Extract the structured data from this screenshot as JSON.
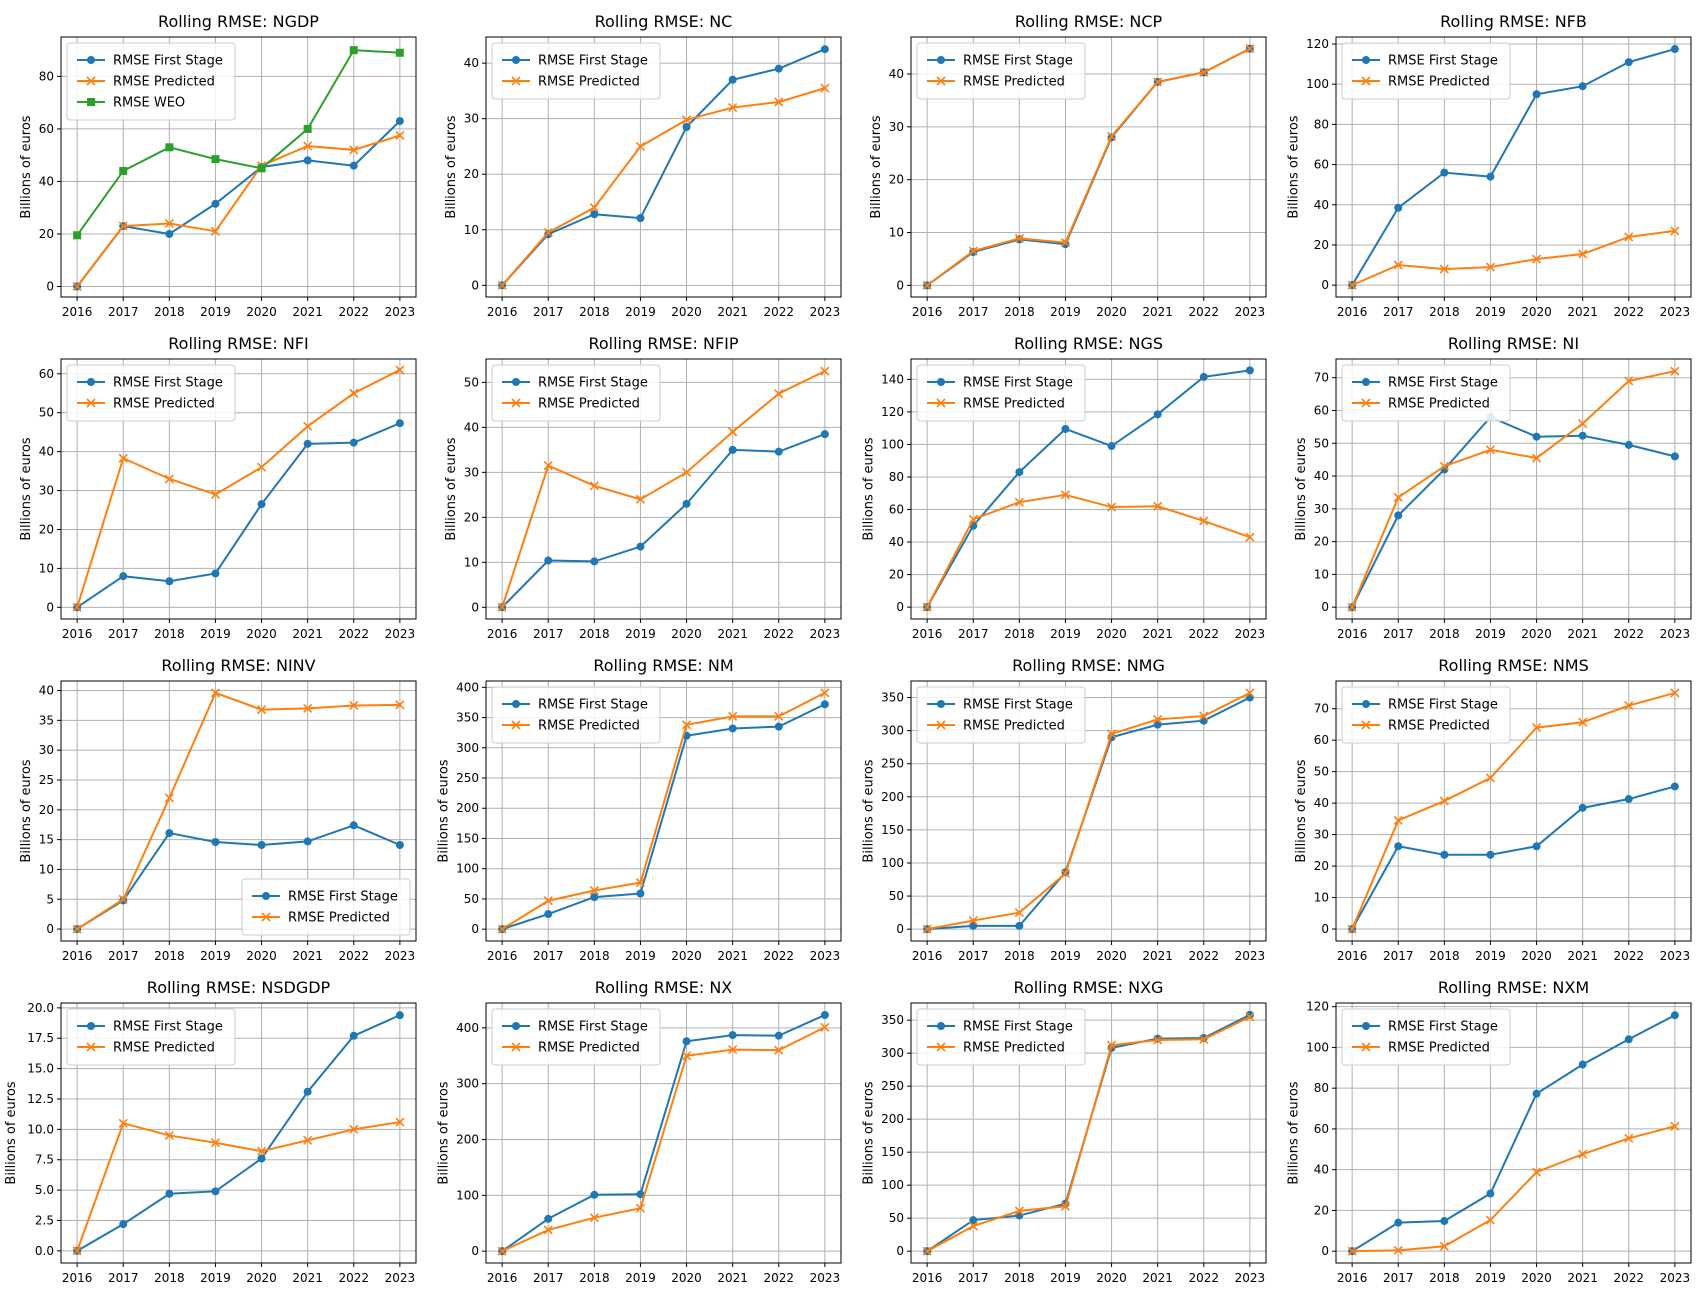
{
  "colors": {
    "first_stage": "#1f77b4",
    "predicted": "#ff7f0e",
    "weo": "#2ca02c",
    "grid": "#b0b0b0"
  },
  "chart_data": [
    {
      "type": "line",
      "title": "Rolling RMSE: NGDP",
      "ylabel": "Billions of euros",
      "x": [
        "2016",
        "2017",
        "2018",
        "2019",
        "2020",
        "2021",
        "2022",
        "2023"
      ],
      "ylim": [
        -4,
        95
      ],
      "yticks": [
        0,
        20,
        40,
        60,
        80
      ],
      "legend": "top-left",
      "grid": true,
      "series": [
        {
          "name": "RMSE First Stage",
          "color": "#1f77b4",
          "marker": "circle",
          "values": [
            0,
            23,
            20,
            31.5,
            45.5,
            48,
            46,
            63
          ]
        },
        {
          "name": "RMSE Predicted",
          "color": "#ff7f0e",
          "marker": "x",
          "values": [
            0,
            23,
            24,
            21,
            46,
            53.5,
            52,
            57.5
          ]
        },
        {
          "name": "RMSE WEO",
          "color": "#2ca02c",
          "marker": "square",
          "values": [
            19.5,
            44,
            53,
            48.5,
            45,
            60,
            90,
            89
          ]
        }
      ]
    },
    {
      "type": "line",
      "title": "Rolling RMSE: NC",
      "ylabel": "Billions of euros",
      "x": [
        "2016",
        "2017",
        "2018",
        "2019",
        "2020",
        "2021",
        "2022",
        "2023"
      ],
      "ylim": [
        -2.1,
        44.7
      ],
      "yticks": [
        0,
        10,
        20,
        30,
        40
      ],
      "legend": "top-left",
      "grid": true,
      "series": [
        {
          "name": "RMSE First Stage",
          "color": "#1f77b4",
          "marker": "circle",
          "values": [
            0,
            9.2,
            12.8,
            12.1,
            28.5,
            37,
            39,
            42.5
          ]
        },
        {
          "name": "RMSE Predicted",
          "color": "#ff7f0e",
          "marker": "x",
          "values": [
            0,
            9.5,
            14,
            25,
            29.8,
            32,
            33,
            35.5
          ]
        }
      ]
    },
    {
      "type": "line",
      "title": "Rolling RMSE: NCP",
      "ylabel": "Billions of euros",
      "x": [
        "2016",
        "2017",
        "2018",
        "2019",
        "2020",
        "2021",
        "2022",
        "2023"
      ],
      "ylim": [
        -2.2,
        47
      ],
      "yticks": [
        0,
        10,
        20,
        30,
        40
      ],
      "legend": "top-left",
      "grid": true,
      "series": [
        {
          "name": "RMSE First Stage",
          "color": "#1f77b4",
          "marker": "circle",
          "values": [
            0,
            6.3,
            8.7,
            7.8,
            28,
            38.5,
            40.3,
            44.8
          ]
        },
        {
          "name": "RMSE Predicted",
          "color": "#ff7f0e",
          "marker": "x",
          "values": [
            0,
            6.5,
            8.9,
            8.1,
            28.2,
            38.5,
            40.3,
            44.8
          ]
        }
      ]
    },
    {
      "type": "line",
      "title": "Rolling RMSE: NFB",
      "ylabel": "Billions of euros",
      "x": [
        "2016",
        "2017",
        "2018",
        "2019",
        "2020",
        "2021",
        "2022",
        "2023"
      ],
      "ylim": [
        -5.9,
        123.5
      ],
      "yticks": [
        0,
        20,
        40,
        60,
        80,
        100,
        120
      ],
      "legend": "top-left",
      "grid": true,
      "series": [
        {
          "name": "RMSE First Stage",
          "color": "#1f77b4",
          "marker": "circle",
          "values": [
            0,
            38.5,
            56,
            54,
            95,
            99,
            111,
            117.5
          ]
        },
        {
          "name": "RMSE Predicted",
          "color": "#ff7f0e",
          "marker": "x",
          "values": [
            0,
            10,
            8,
            9,
            13,
            15.5,
            24,
            27
          ]
        }
      ]
    },
    {
      "type": "line",
      "title": "Rolling RMSE: NFI",
      "ylabel": "Billions of euros",
      "x": [
        "2016",
        "2017",
        "2018",
        "2019",
        "2020",
        "2021",
        "2022",
        "2023"
      ],
      "ylim": [
        -3,
        63.8
      ],
      "yticks": [
        0,
        10,
        20,
        30,
        40,
        50,
        60
      ],
      "legend": "top-left",
      "grid": true,
      "series": [
        {
          "name": "RMSE First Stage",
          "color": "#1f77b4",
          "marker": "circle",
          "values": [
            0,
            8,
            6.7,
            8.7,
            26.5,
            42,
            42.3,
            47.3
          ]
        },
        {
          "name": "RMSE Predicted",
          "color": "#ff7f0e",
          "marker": "x",
          "values": [
            0,
            38.3,
            33,
            29,
            36,
            46.5,
            55,
            61
          ]
        }
      ]
    },
    {
      "type": "line",
      "title": "Rolling RMSE: NFIP",
      "ylabel": "Billions of euros",
      "x": [
        "2016",
        "2017",
        "2018",
        "2019",
        "2020",
        "2021",
        "2022",
        "2023"
      ],
      "ylim": [
        -2.6,
        55.2
      ],
      "yticks": [
        0,
        10,
        20,
        30,
        40,
        50
      ],
      "legend": "top-left",
      "grid": true,
      "series": [
        {
          "name": "RMSE First Stage",
          "color": "#1f77b4",
          "marker": "circle",
          "values": [
            0,
            10.4,
            10.2,
            13.5,
            23,
            35,
            34.6,
            38.5
          ]
        },
        {
          "name": "RMSE Predicted",
          "color": "#ff7f0e",
          "marker": "x",
          "values": [
            0,
            31.5,
            27,
            24,
            30,
            39,
            47.5,
            52.5
          ]
        }
      ]
    },
    {
      "type": "line",
      "title": "Rolling RMSE: NGS",
      "ylabel": "Billions of euros",
      "x": [
        "2016",
        "2017",
        "2018",
        "2019",
        "2020",
        "2021",
        "2022",
        "2023"
      ],
      "ylim": [
        -7.3,
        152.5
      ],
      "yticks": [
        0,
        20,
        40,
        60,
        80,
        100,
        120,
        140
      ],
      "legend": "top-left",
      "grid": true,
      "series": [
        {
          "name": "RMSE First Stage",
          "color": "#1f77b4",
          "marker": "circle",
          "values": [
            0,
            50,
            83,
            109.5,
            99,
            118.5,
            141.5,
            145.5
          ]
        },
        {
          "name": "RMSE Predicted",
          "color": "#ff7f0e",
          "marker": "x",
          "values": [
            0,
            54,
            64.5,
            69,
            61.5,
            62,
            53,
            43
          ]
        }
      ]
    },
    {
      "type": "line",
      "title": "Rolling RMSE: NI",
      "ylabel": "Billions of euros",
      "x": [
        "2016",
        "2017",
        "2018",
        "2019",
        "2020",
        "2021",
        "2022",
        "2023"
      ],
      "ylim": [
        -3.6,
        75.7
      ],
      "yticks": [
        0,
        10,
        20,
        30,
        40,
        50,
        60,
        70
      ],
      "legend": "top-left",
      "grid": true,
      "series": [
        {
          "name": "RMSE First Stage",
          "color": "#1f77b4",
          "marker": "circle",
          "values": [
            0,
            28,
            42,
            58,
            52,
            52.3,
            49.5,
            46
          ]
        },
        {
          "name": "RMSE Predicted",
          "color": "#ff7f0e",
          "marker": "x",
          "values": [
            0,
            33.5,
            43,
            48,
            45.5,
            56,
            69,
            72
          ]
        }
      ]
    },
    {
      "type": "line",
      "title": "Rolling RMSE: NINV",
      "ylabel": "Billions of euros",
      "x": [
        "2016",
        "2017",
        "2018",
        "2019",
        "2020",
        "2021",
        "2022",
        "2023"
      ],
      "ylim": [
        -2,
        41.6
      ],
      "yticks": [
        0,
        5,
        10,
        15,
        20,
        25,
        30,
        35,
        40
      ],
      "legend": "bottom-right",
      "grid": true,
      "series": [
        {
          "name": "RMSE First Stage",
          "color": "#1f77b4",
          "marker": "circle",
          "values": [
            0,
            4.8,
            16.1,
            14.6,
            14.1,
            14.7,
            17.4,
            14.1
          ]
        },
        {
          "name": "RMSE Predicted",
          "color": "#ff7f0e",
          "marker": "x",
          "values": [
            0,
            5,
            22,
            39.6,
            36.8,
            37,
            37.5,
            37.6
          ]
        }
      ]
    },
    {
      "type": "line",
      "title": "Rolling RMSE: NM",
      "ylabel": "Billions of euros",
      "x": [
        "2016",
        "2017",
        "2018",
        "2019",
        "2020",
        "2021",
        "2022",
        "2023"
      ],
      "ylim": [
        -19.6,
        410.5
      ],
      "yticks": [
        0,
        50,
        100,
        150,
        200,
        250,
        300,
        350,
        400
      ],
      "legend": "top-left",
      "grid": true,
      "series": [
        {
          "name": "RMSE First Stage",
          "color": "#1f77b4",
          "marker": "circle",
          "values": [
            0,
            25,
            53,
            59,
            320,
            332,
            335,
            372
          ]
        },
        {
          "name": "RMSE Predicted",
          "color": "#ff7f0e",
          "marker": "x",
          "values": [
            0,
            47,
            64,
            77,
            338,
            352,
            352,
            391
          ]
        }
      ]
    },
    {
      "type": "line",
      "title": "Rolling RMSE: NMG",
      "ylabel": "Billions of euros",
      "x": [
        "2016",
        "2017",
        "2018",
        "2019",
        "2020",
        "2021",
        "2022",
        "2023"
      ],
      "ylim": [
        -17.9,
        375
      ],
      "yticks": [
        0,
        50,
        100,
        150,
        200,
        250,
        300,
        350
      ],
      "legend": "top-left",
      "grid": true,
      "series": [
        {
          "name": "RMSE First Stage",
          "color": "#1f77b4",
          "marker": "circle",
          "values": [
            0,
            5,
            5,
            86,
            290,
            309,
            315,
            350
          ]
        },
        {
          "name": "RMSE Predicted",
          "color": "#ff7f0e",
          "marker": "x",
          "values": [
            0,
            13,
            25,
            84,
            295,
            317,
            322,
            357
          ]
        }
      ]
    },
    {
      "type": "line",
      "title": "Rolling RMSE: NMS",
      "ylabel": "Billions of euros",
      "x": [
        "2016",
        "2017",
        "2018",
        "2019",
        "2020",
        "2021",
        "2022",
        "2023"
      ],
      "ylim": [
        -3.8,
        78.8
      ],
      "yticks": [
        0,
        10,
        20,
        30,
        40,
        50,
        60,
        70
      ],
      "legend": "top-left",
      "grid": true,
      "series": [
        {
          "name": "RMSE First Stage",
          "color": "#1f77b4",
          "marker": "circle",
          "values": [
            0,
            26.3,
            23.6,
            23.6,
            26.3,
            38.5,
            41.3,
            45.3
          ]
        },
        {
          "name": "RMSE Predicted",
          "color": "#ff7f0e",
          "marker": "x",
          "values": [
            0,
            34.5,
            40.7,
            48,
            64,
            65.7,
            71,
            75
          ]
        }
      ]
    },
    {
      "type": "line",
      "title": "Rolling RMSE: NSDGDP",
      "ylabel": "Billions of euros",
      "x": [
        "2016",
        "2017",
        "2018",
        "2019",
        "2020",
        "2021",
        "2022",
        "2023"
      ],
      "ylim": [
        -1,
        20.4
      ],
      "yticks": [
        0.0,
        2.5,
        5.0,
        7.5,
        10.0,
        12.5,
        15.0,
        17.5,
        20.0
      ],
      "ytick_labels": [
        "0.0",
        "2.5",
        "5.0",
        "7.5",
        "10.0",
        "12.5",
        "15.0",
        "17.5",
        "20.0"
      ],
      "legend": "top-left",
      "grid": true,
      "series": [
        {
          "name": "RMSE First Stage",
          "color": "#1f77b4",
          "marker": "circle",
          "values": [
            0,
            2.2,
            4.7,
            4.9,
            7.6,
            13.1,
            17.7,
            19.4
          ]
        },
        {
          "name": "RMSE Predicted",
          "color": "#ff7f0e",
          "marker": "x",
          "values": [
            0,
            10.5,
            9.5,
            8.9,
            8.2,
            9.1,
            10,
            10.6
          ]
        }
      ]
    },
    {
      "type": "line",
      "title": "Rolling RMSE: NX",
      "ylabel": "Billions of euros",
      "x": [
        "2016",
        "2017",
        "2018",
        "2019",
        "2020",
        "2021",
        "2022",
        "2023"
      ],
      "ylim": [
        -21.2,
        444.5
      ],
      "yticks": [
        0,
        100,
        200,
        300,
        400
      ],
      "legend": "top-left",
      "grid": true,
      "series": [
        {
          "name": "RMSE First Stage",
          "color": "#1f77b4",
          "marker": "circle",
          "values": [
            0,
            58,
            101,
            102,
            376,
            387,
            386,
            423
          ]
        },
        {
          "name": "RMSE Predicted",
          "color": "#ff7f0e",
          "marker": "x",
          "values": [
            0,
            38,
            60,
            77,
            350,
            361,
            360,
            401
          ]
        }
      ]
    },
    {
      "type": "line",
      "title": "Rolling RMSE: NXG",
      "ylabel": "Billions of euros",
      "x": [
        "2016",
        "2017",
        "2018",
        "2019",
        "2020",
        "2021",
        "2022",
        "2023"
      ],
      "ylim": [
        -17.9,
        376
      ],
      "yticks": [
        0,
        50,
        100,
        150,
        200,
        250,
        300,
        350
      ],
      "legend": "top-left",
      "grid": true,
      "series": [
        {
          "name": "RMSE First Stage",
          "color": "#1f77b4",
          "marker": "circle",
          "values": [
            0,
            47,
            54,
            72,
            308,
            322,
            323,
            358
          ]
        },
        {
          "name": "RMSE Predicted",
          "color": "#ff7f0e",
          "marker": "x",
          "values": [
            0,
            38,
            61,
            68,
            312,
            320,
            321,
            355
          ]
        }
      ]
    },
    {
      "type": "line",
      "title": "Rolling RMSE: NXM",
      "ylabel": "Billions of euros",
      "x": [
        "2016",
        "2017",
        "2018",
        "2019",
        "2020",
        "2021",
        "2022",
        "2023"
      ],
      "ylim": [
        -5.8,
        121.8
      ],
      "yticks": [
        0,
        20,
        40,
        60,
        80,
        100,
        120
      ],
      "legend": "top-left",
      "grid": true,
      "series": [
        {
          "name": "RMSE First Stage",
          "color": "#1f77b4",
          "marker": "circle",
          "values": [
            0,
            14,
            14.8,
            28.3,
            77.3,
            91.6,
            104,
            115.8
          ]
        },
        {
          "name": "RMSE Predicted",
          "color": "#ff7f0e",
          "marker": "x",
          "values": [
            0,
            0.4,
            2.4,
            15.3,
            38.8,
            47.6,
            55.4,
            61.3
          ]
        }
      ]
    }
  ]
}
